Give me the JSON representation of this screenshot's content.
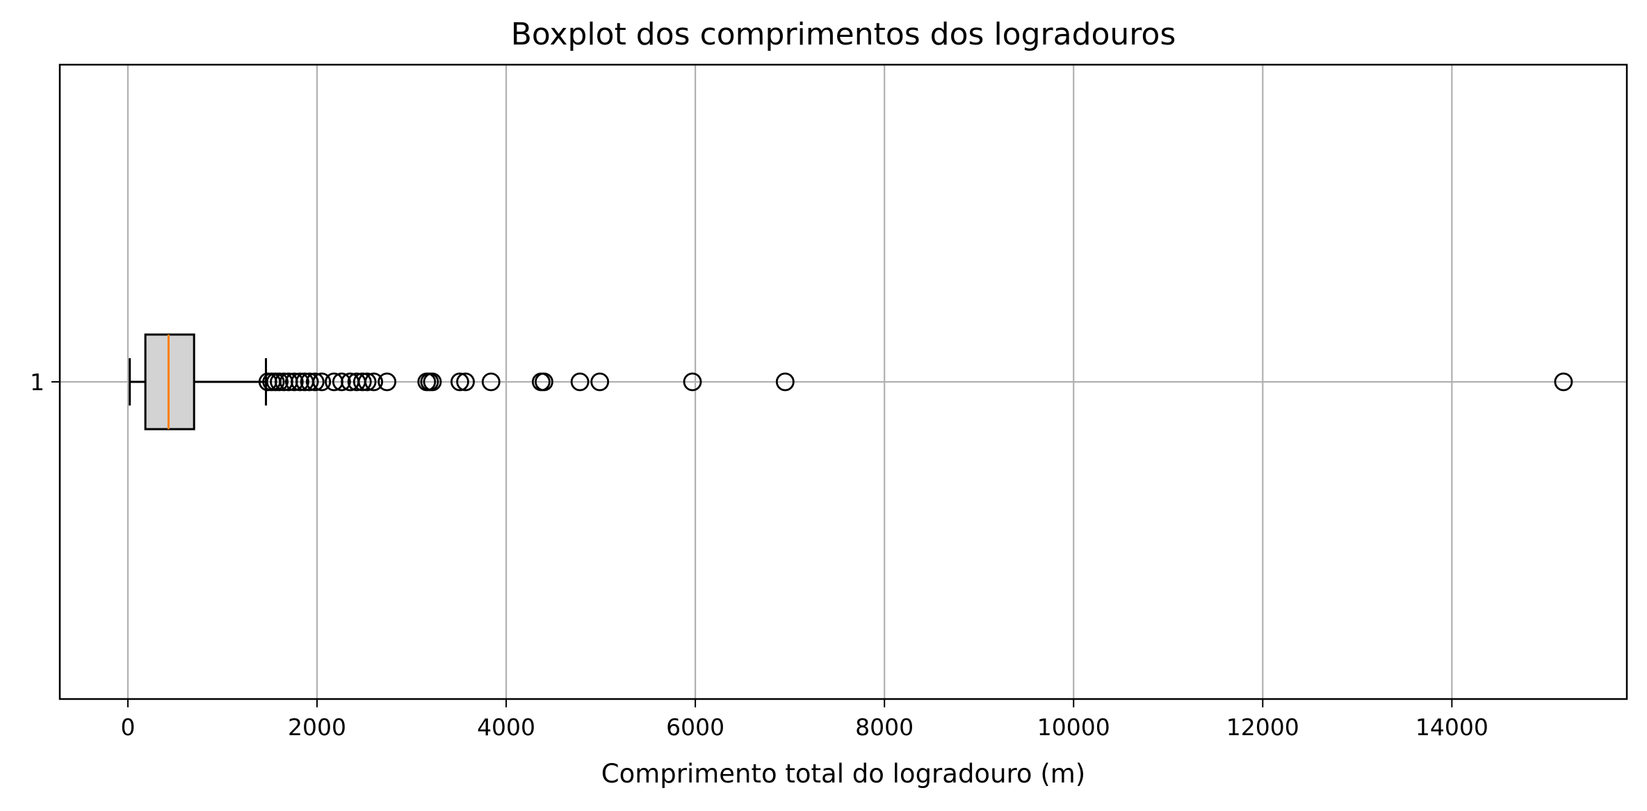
{
  "chart_data": {
    "type": "boxplot",
    "orientation": "horizontal",
    "title": "Boxplot dos comprimentos dos logradouros",
    "xlabel": "Comprimento total do logradouro (m)",
    "ylabel": "",
    "xlim": [
      -720,
      15850
    ],
    "xticks": [
      0,
      2000,
      4000,
      6000,
      8000,
      10000,
      12000,
      14000
    ],
    "xtick_labels": [
      "0",
      "2000",
      "4000",
      "6000",
      "8000",
      "10000",
      "12000",
      "14000"
    ],
    "ytick_labels": [
      "1"
    ],
    "grid": true,
    "box": {
      "position": 1,
      "whisker_low": 20,
      "q1": 185,
      "median": 430,
      "q3": 700,
      "whisker_high": 1460
    },
    "outliers": [
      1480,
      1520,
      1560,
      1600,
      1650,
      1700,
      1760,
      1820,
      1870,
      1920,
      1980,
      2050,
      2180,
      2260,
      2350,
      2420,
      2480,
      2530,
      2600,
      2740,
      3160,
      3190,
      3220,
      3510,
      3570,
      3840,
      4370,
      4400,
      4780,
      4990,
      5970,
      6950,
      15180
    ],
    "colors": {
      "box_fill": "#d3d3d3",
      "median": "#ff7f0e",
      "grid": "#b0b0b0",
      "outline": "#000000"
    }
  }
}
